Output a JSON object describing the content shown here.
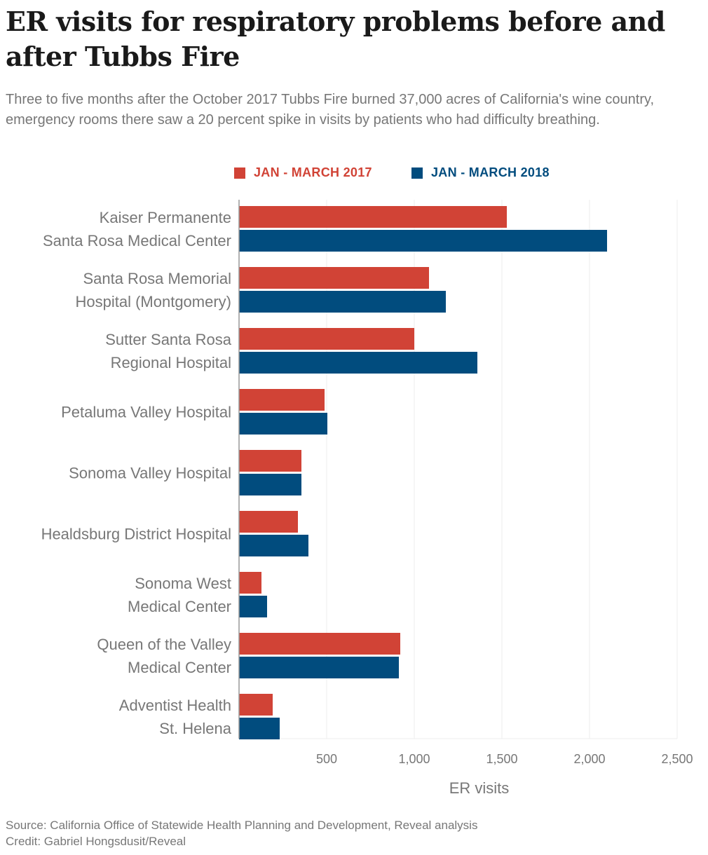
{
  "title": "ER visits for respiratory problems before and after Tubbs Fire",
  "subtitle": "Three to five months after the October 2017 Tubbs Fire burned 37,000 acres of California's wine country, emergency rooms there saw a 20 percent spike in visits by patients who had difficulty breathing.",
  "colors": {
    "series_2017": "#d14336",
    "series_2018": "#014c7e",
    "label_text": "#777777",
    "grid": "#eeeeee",
    "axis": "#999999"
  },
  "footer": {
    "source": "Source: California Office of Statewide Health Planning and Development, Reveal analysis",
    "credit": "Credit: Gabriel Hongsdusit/Reveal"
  },
  "chart_data": {
    "type": "bar",
    "orientation": "horizontal",
    "title": "ER visits for respiratory problems before and after Tubbs Fire",
    "xlabel": "ER visits",
    "ylabel": "",
    "xlim": [
      0,
      2500
    ],
    "xticks": [
      500,
      1000,
      1500,
      2000,
      2500
    ],
    "xtick_labels": [
      "500",
      "1,000",
      "1,500",
      "2,000",
      "2,500"
    ],
    "grid": true,
    "legend_position": "top-center",
    "categories": [
      [
        "Kaiser Permanente",
        "Santa Rosa Medical Center"
      ],
      [
        "Santa Rosa Memorial",
        "Hospital (Montgomery)"
      ],
      [
        "Sutter Santa Rosa",
        "Regional Hospital"
      ],
      [
        "Petaluma Valley Hospital"
      ],
      [
        "Sonoma Valley Hospital"
      ],
      [
        "Healdsburg District Hospital"
      ],
      [
        "Sonoma West",
        "Medical Center"
      ],
      [
        "Queen of the Valley",
        "Medical Center"
      ],
      [
        "Adventist Health",
        "St. Helena"
      ]
    ],
    "series": [
      {
        "name": "JAN - MARCH 2017",
        "color": "#d14336",
        "values": [
          1528,
          1084,
          1000,
          488,
          356,
          336,
          128,
          920,
          192
        ]
      },
      {
        "name": "JAN - MARCH 2018",
        "color": "#014c7e",
        "values": [
          2100,
          1180,
          1360,
          504,
          356,
          396,
          160,
          912,
          232
        ]
      }
    ]
  }
}
